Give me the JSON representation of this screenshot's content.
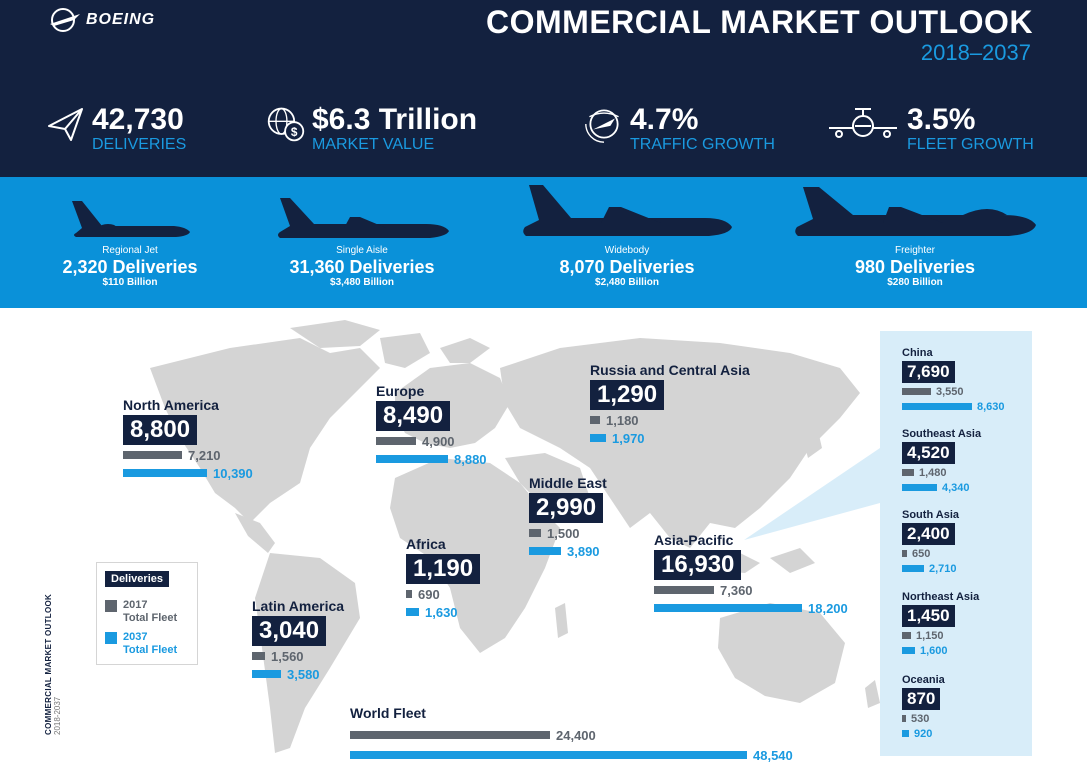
{
  "header": {
    "logo_text": "BOEING",
    "title": "COMMERCIAL MARKET OUTLOOK",
    "subtitle": "2018–2037"
  },
  "stats": [
    {
      "value": "42,730",
      "label": "DELIVERIES",
      "icon": "paper-plane-icon"
    },
    {
      "value": "$6.3 Trillion",
      "label": "MARKET VALUE",
      "icon": "globe-dollar-icon"
    },
    {
      "value": "4.7%",
      "label": "TRAFFIC GROWTH",
      "icon": "globe-plane-icon"
    },
    {
      "value": "3.5%",
      "label": "FLEET GROWTH",
      "icon": "plane-front-icon"
    }
  ],
  "segments": [
    {
      "name": "Regional Jet",
      "deliveries": "2,320 Deliveries",
      "value": "$110 Billion"
    },
    {
      "name": "Single Aisle",
      "deliveries": "31,360 Deliveries",
      "value": "$3,480 Billion"
    },
    {
      "name": "Widebody",
      "deliveries": "8,070 Deliveries",
      "value": "$2,480 Billion"
    },
    {
      "name": "Freighter",
      "deliveries": "980 Deliveries",
      "value": "$280 Billion"
    }
  ],
  "legend": {
    "title": "Deliveries",
    "fleet_2017": "2017\nTotal Fleet",
    "fleet_2037": "2037\nTotal Fleet",
    "colors": {
      "fleet_2017": "#5e656e",
      "fleet_2037": "#1a9ae0",
      "box": "#13213f"
    }
  },
  "side_label": {
    "title": "COMMERCIAL MARKET OUTLOOK",
    "years": "2018-2037"
  },
  "chart_data": {
    "type": "bar",
    "title": "COMMERCIAL MARKET OUTLOOK",
    "subtitle": "2018–2037",
    "series_names": [
      "Deliveries",
      "2017 Total Fleet",
      "2037 Total Fleet"
    ],
    "regions": [
      {
        "name": "North America",
        "deliveries": "8,800",
        "fleet_2017": 7210,
        "fleet_2037": 10390,
        "fleet_2017_label": "7,210",
        "fleet_2037_label": "10,390"
      },
      {
        "name": "Europe",
        "deliveries": "8,490",
        "fleet_2017": 4900,
        "fleet_2037": 8880,
        "fleet_2017_label": "4,900",
        "fleet_2037_label": "8,880"
      },
      {
        "name": "Russia and Central Asia",
        "deliveries": "1,290",
        "fleet_2017": 1180,
        "fleet_2037": 1970,
        "fleet_2017_label": "1,180",
        "fleet_2037_label": "1,970"
      },
      {
        "name": "Middle East",
        "deliveries": "2,990",
        "fleet_2017": 1500,
        "fleet_2037": 3890,
        "fleet_2017_label": "1,500",
        "fleet_2037_label": "3,890"
      },
      {
        "name": "Africa",
        "deliveries": "1,190",
        "fleet_2017": 690,
        "fleet_2037": 1630,
        "fleet_2017_label": "690",
        "fleet_2037_label": "1,630"
      },
      {
        "name": "Asia-Pacific",
        "deliveries": "16,930",
        "fleet_2017": 7360,
        "fleet_2037": 18200,
        "fleet_2017_label": "7,360",
        "fleet_2037_label": "18,200"
      },
      {
        "name": "Latin America",
        "deliveries": "3,040",
        "fleet_2017": 1560,
        "fleet_2037": 3580,
        "fleet_2017_label": "1,560",
        "fleet_2037_label": "3,580"
      }
    ],
    "world": {
      "name": "World Fleet",
      "fleet_2017": 24400,
      "fleet_2037": 48540,
      "fleet_2017_label": "24,400",
      "fleet_2037_label": "48,540"
    },
    "asia_breakdown": [
      {
        "name": "China",
        "deliveries": "7,690",
        "fleet_2017": 3550,
        "fleet_2037": 8630,
        "fleet_2017_label": "3,550",
        "fleet_2037_label": "8,630"
      },
      {
        "name": "Southeast Asia",
        "deliveries": "4,520",
        "fleet_2017": 1480,
        "fleet_2037": 4340,
        "fleet_2017_label": "1,480",
        "fleet_2037_label": "4,340"
      },
      {
        "name": "South Asia",
        "deliveries": "2,400",
        "fleet_2017": 650,
        "fleet_2037": 2710,
        "fleet_2017_label": "650",
        "fleet_2037_label": "2,710"
      },
      {
        "name": "Northeast Asia",
        "deliveries": "1,450",
        "fleet_2017": 1150,
        "fleet_2037": 1600,
        "fleet_2017_label": "1,150",
        "fleet_2037_label": "1,600"
      },
      {
        "name": "Oceania",
        "deliveries": "870",
        "fleet_2017": 530,
        "fleet_2037": 920,
        "fleet_2017_label": "530",
        "fleet_2037_label": "920"
      }
    ]
  }
}
